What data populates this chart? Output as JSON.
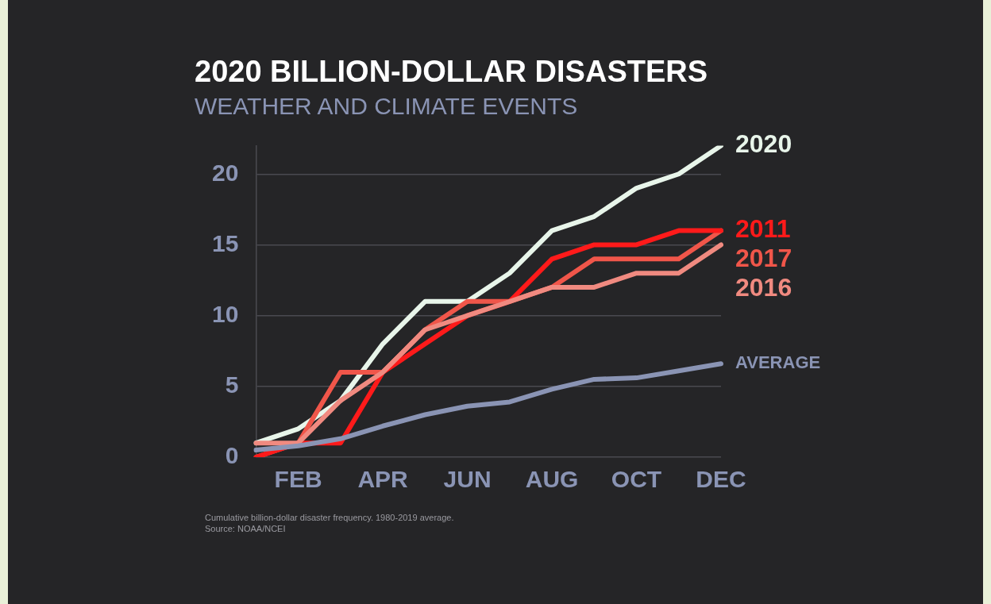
{
  "chart_data": {
    "type": "line",
    "title": "2020 BILLION-DOLLAR DISASTERS",
    "subtitle": "WEATHER AND CLIMATE EVENTS",
    "categories": [
      null,
      "FEB",
      null,
      "APR",
      null,
      "JUN",
      null,
      "AUG",
      null,
      "OCT",
      null,
      "DEC"
    ],
    "series": [
      {
        "name": "AVERAGE",
        "color": "#8a94b4",
        "values": [
          0.5,
          0.8,
          1.3,
          2.2,
          3,
          3.6,
          3.9,
          4.8,
          5.5,
          5.6,
          6.1,
          6.6
        ]
      },
      {
        "name": "2016",
        "color": "#f08a80",
        "values": [
          1,
          1,
          4,
          6,
          9,
          10,
          11,
          12,
          12,
          13,
          13,
          15
        ]
      },
      {
        "name": "2011",
        "color": "#ff1a1a",
        "values": [
          0,
          1,
          1,
          6,
          8,
          10,
          11,
          14,
          15,
          15,
          16,
          16
        ]
      },
      {
        "name": "2017",
        "color": "#f0564a",
        "values": [
          0,
          1,
          6,
          6,
          9,
          11,
          11,
          12,
          14,
          14,
          14,
          16
        ]
      },
      {
        "name": "2020",
        "color": "#e8f5ea",
        "values": [
          1,
          2,
          4,
          8,
          11,
          11,
          13,
          16,
          17,
          19,
          20,
          22
        ]
      }
    ],
    "ylim": [
      0,
      22
    ],
    "yticks": [
      0,
      5,
      10,
      15,
      20
    ],
    "grid": "y",
    "legend": false,
    "marker": "none",
    "line_style": "solid",
    "annotations": [
      "Cumulative billion-dollar disaster frequency. 1980-2019 average.",
      "Source: NOAA/NCEI"
    ]
  }
}
